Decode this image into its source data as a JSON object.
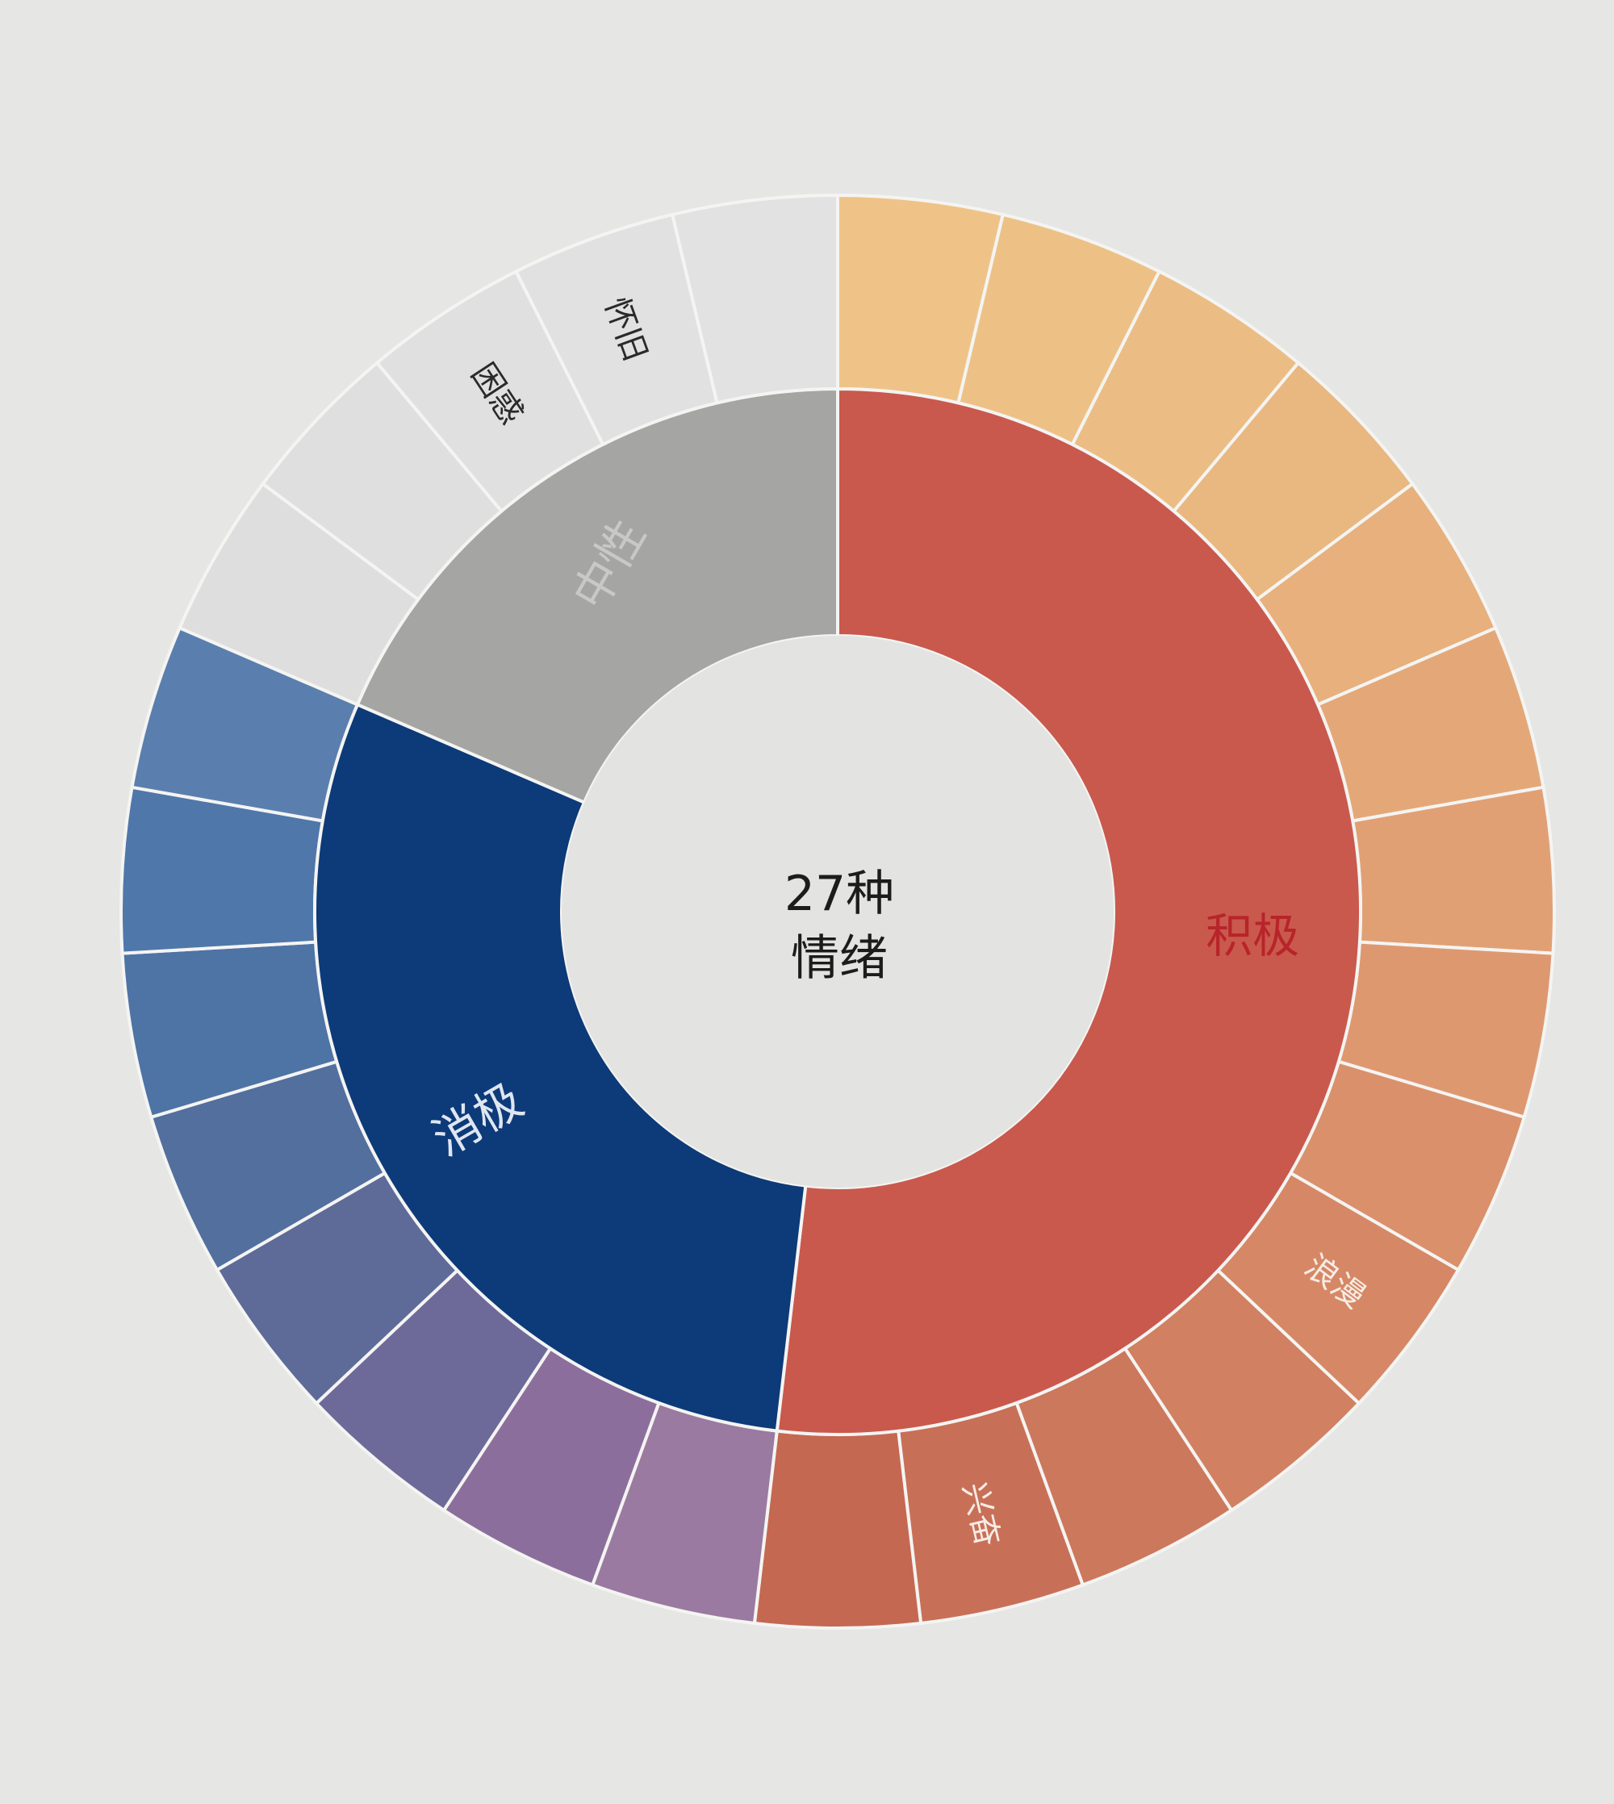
{
  "chart_data": {
    "type": "sunburst",
    "center_label_lines": [
      "27种",
      "情绪"
    ],
    "groups": [
      {
        "name": "积极",
        "color": "#c9594d",
        "text_color": "#b8242a",
        "children": [
          {
            "label": "",
            "color": "#efc388"
          },
          {
            "label": "",
            "color": "#edc186"
          },
          {
            "label": "",
            "color": "#ebbd84"
          },
          {
            "label": "",
            "color": "#e9b780"
          },
          {
            "label": "",
            "color": "#e7b07c"
          },
          {
            "label": "",
            "color": "#e4a878"
          },
          {
            "label": "",
            "color": "#e1a074"
          },
          {
            "label": "",
            "color": "#de9870"
          },
          {
            "label": "",
            "color": "#da906b"
          },
          {
            "label": "浪漫",
            "color": "#d68866"
          },
          {
            "label": "",
            "color": "#d18061"
          },
          {
            "label": "",
            "color": "#cc785c"
          },
          {
            "label": "兴奋",
            "color": "#c87057"
          },
          {
            "label": "",
            "color": "#c46852"
          }
        ]
      },
      {
        "name": "消极",
        "color": "#0d3a78",
        "text_color": "#dfe6f2",
        "children": [
          {
            "label": "",
            "color": "#9a7aa0"
          },
          {
            "label": "",
            "color": "#8c6e9c"
          },
          {
            "label": "",
            "color": "#6d6a9a"
          },
          {
            "label": "",
            "color": "#5e6b98"
          },
          {
            "label": "",
            "color": "#526f9e"
          },
          {
            "label": "",
            "color": "#4e73a5"
          },
          {
            "label": "",
            "color": "#4f77aa"
          },
          {
            "label": "",
            "color": "#5a7fae"
          }
        ]
      },
      {
        "name": "中性",
        "color": "#a5a5a3",
        "text_color": "#c8c8c6",
        "children": [
          {
            "label": "",
            "color": "#dedede"
          },
          {
            "label": "",
            "color": "#dfdfdf"
          },
          {
            "label": "困惑",
            "color": "#e0e0e0"
          },
          {
            "label": "怀旧",
            "color": "#e1e1e1"
          },
          {
            "label": "",
            "color": "#e2e2e2"
          }
        ]
      }
    ]
  }
}
